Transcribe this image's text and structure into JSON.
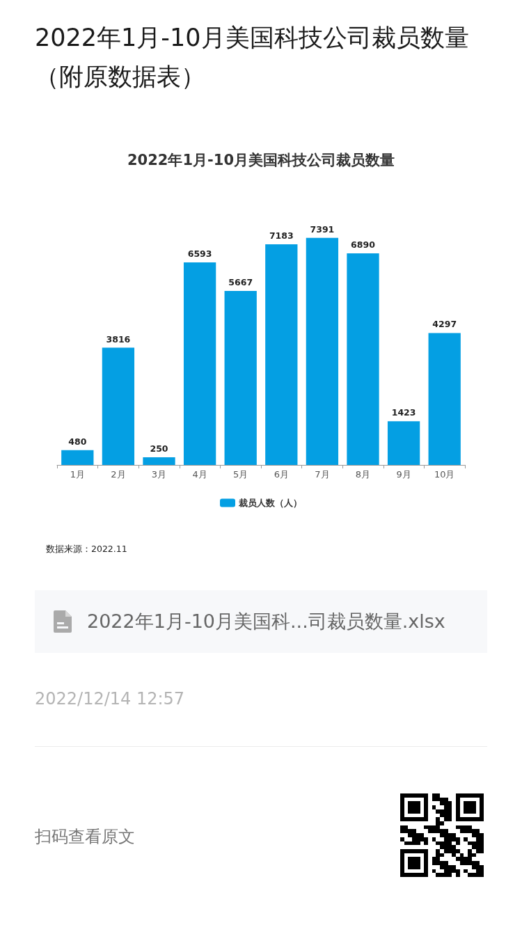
{
  "chart_data": {
    "type": "bar",
    "title": "2022年1月-10月美国科技公司裁员数量（附原数据表）",
    "subtitle": "2022年1月-10月美国科技公司裁员数量",
    "categories": [
      "1月",
      "2月",
      "3月",
      "4月",
      "5月",
      "6月",
      "7月",
      "8月",
      "9月",
      "10月"
    ],
    "series": [
      {
        "name": "裁员人数（人）",
        "color": "#049fe3",
        "values": [
          480,
          3816,
          250,
          6593,
          5667,
          7183,
          7391,
          6890,
          1423,
          4297
        ]
      }
    ],
    "data_labels": true,
    "legend": "bottom",
    "grid": false,
    "tick_labels": "x",
    "annotations": [
      "数据来源：2022.11",
      "2022年1月-10月美国科...司裁员数量.xlsx",
      "2022/12/14 12:57",
      "扫码查看原文"
    ]
  }
}
